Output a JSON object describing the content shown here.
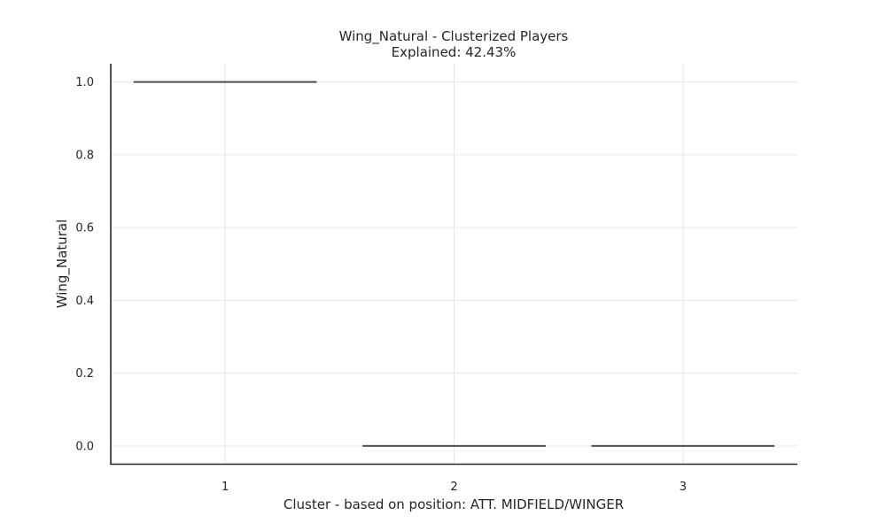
{
  "chart_data": {
    "type": "box",
    "title": "Wing_Natural - Clusterized Players",
    "subtitle": "Explained: 42.43%",
    "xlabel": "Cluster - based on position: ATT. MIDFIELD/WINGER",
    "ylabel": "Wing_Natural",
    "categories": [
      "1",
      "2",
      "3"
    ],
    "values": [
      {
        "category": "1",
        "min": 1.0,
        "q1": 1.0,
        "median": 1.0,
        "q3": 1.0,
        "max": 1.0
      },
      {
        "category": "2",
        "min": 0.0,
        "q1": 0.0,
        "median": 0.0,
        "q3": 0.0,
        "max": 0.0
      },
      {
        "category": "3",
        "min": 0.0,
        "q1": 0.0,
        "median": 0.0,
        "q3": 0.0,
        "max": 0.0
      }
    ],
    "ylim": [
      -0.05,
      1.05
    ],
    "yticks": [
      0.0,
      0.2,
      0.4,
      0.6,
      0.8,
      1.0
    ],
    "ytick_labels": [
      "0.0",
      "0.2",
      "0.4",
      "0.6",
      "0.8",
      "1.0"
    ],
    "grid": true,
    "legend": "none",
    "colors": {
      "box": "#4d4d4d",
      "grid": "#e6e6e6",
      "axis": "#262626",
      "text": "#262626"
    }
  }
}
